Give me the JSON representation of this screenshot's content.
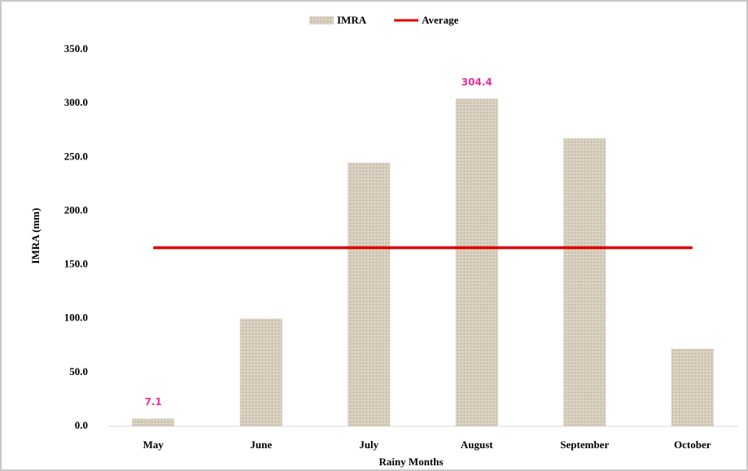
{
  "chart_data": {
    "type": "bar",
    "categories": [
      "May",
      "June",
      "July",
      "August",
      "September",
      "October"
    ],
    "series": [
      {
        "name": "IMRA",
        "type": "bar",
        "color": "#d6ccbb",
        "values": [
          7.1,
          100,
          245,
          304.4,
          267.5,
          72
        ],
        "value_labels": [
          "7.1",
          null,
          null,
          "304.4",
          null,
          null
        ],
        "label_color": "#e8309a"
      },
      {
        "name": "Average",
        "type": "line",
        "color": "#e00000",
        "values": [
          165.9,
          165.9,
          165.9,
          165.9,
          165.9,
          165.9
        ]
      }
    ],
    "xlabel": "Rainy Months",
    "ylabel": "IMRA (mm)",
    "ylim": [
      0,
      350
    ],
    "yticks": [
      {
        "value": 0,
        "label": "0.0"
      },
      {
        "value": 50,
        "label": "50.0"
      },
      {
        "value": 100,
        "label": "100.0"
      },
      {
        "value": 150,
        "label": "150.0"
      },
      {
        "value": 200,
        "label": "200.0"
      },
      {
        "value": 250,
        "label": "250.0"
      },
      {
        "value": 300,
        "label": "300.0"
      },
      {
        "value": 350,
        "label": "350.0"
      }
    ],
    "grid": false,
    "legend": "top"
  }
}
